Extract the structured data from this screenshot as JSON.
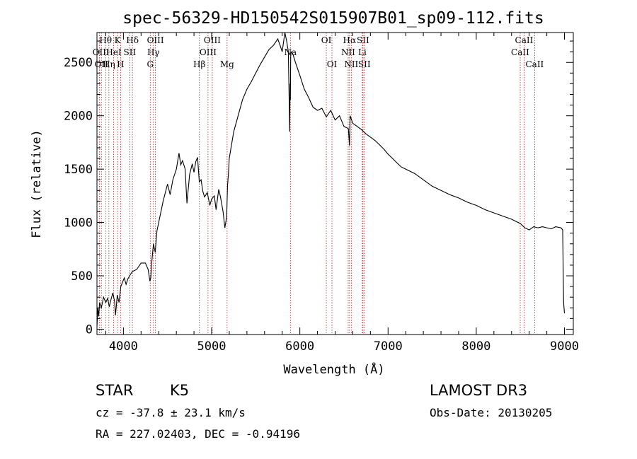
{
  "chart_data": {
    "type": "line",
    "title": "spec-56329-HD150542S015907B01_sp09-112.fits",
    "xlabel": "Wavelength (Å)",
    "ylabel": "Flux (relative)",
    "xlim": [
      3700,
      9100
    ],
    "ylim": [
      -50,
      2780
    ],
    "xticks": [
      4000,
      5000,
      6000,
      7000,
      8000,
      9000
    ],
    "yticks": [
      0,
      500,
      1000,
      1500,
      2000,
      2500
    ],
    "grid": false,
    "series": [
      {
        "x": [
          3700,
          3710,
          3720,
          3730,
          3750,
          3775,
          3800,
          3820,
          3840,
          3860,
          3880,
          3900,
          3910,
          3930,
          3950,
          3970,
          3990,
          4010,
          4030,
          4050,
          4070,
          4100,
          4150,
          4200,
          4250,
          4280,
          4300,
          4310,
          4320,
          4340,
          4360,
          4380,
          4400,
          4450,
          4500,
          4530,
          4560,
          4600,
          4630,
          4650,
          4670,
          4700,
          4720,
          4750,
          4780,
          4800,
          4820,
          4840,
          4860,
          4880,
          4900,
          4920,
          4950,
          4980,
          5000,
          5030,
          5050,
          5080,
          5100,
          5130,
          5150,
          5170,
          5180,
          5190,
          5200,
          5220,
          5250,
          5300,
          5350,
          5400,
          5450,
          5500,
          5550,
          5600,
          5650,
          5700,
          5750,
          5780,
          5800,
          5830,
          5850,
          5870,
          5885,
          5890,
          5893,
          5896,
          5900,
          5920,
          5950,
          6000,
          6050,
          6100,
          6150,
          6200,
          6250,
          6300,
          6350,
          6400,
          6450,
          6500,
          6550,
          6563,
          6570,
          6600,
          6650,
          6700,
          6750,
          6800,
          6850,
          6900,
          6950,
          7000,
          7050,
          7100,
          7150,
          7200,
          7300,
          7400,
          7500,
          7600,
          7700,
          7800,
          7900,
          8000,
          8100,
          8200,
          8300,
          8400,
          8500,
          8550,
          8600,
          8650,
          8700,
          8750,
          8800,
          8850,
          8900,
          8960,
          8980,
          8990,
          9000
        ],
        "y": [
          20,
          200,
          120,
          250,
          200,
          300,
          250,
          290,
          210,
          280,
          340,
          260,
          130,
          320,
          250,
          400,
          440,
          480,
          420,
          470,
          500,
          540,
          560,
          620,
          620,
          560,
          450,
          480,
          620,
          800,
          720,
          920,
          1000,
          1200,
          1360,
          1260,
          1400,
          1500,
          1650,
          1540,
          1580,
          1500,
          1180,
          1450,
          1550,
          1470,
          1570,
          1610,
          1380,
          1400,
          1290,
          1240,
          1280,
          1160,
          1220,
          1250,
          1120,
          1310,
          1240,
          1100,
          950,
          1050,
          1350,
          1450,
          1600,
          1700,
          1850,
          2000,
          2150,
          2250,
          2320,
          2400,
          2480,
          2550,
          2620,
          2660,
          2720,
          2650,
          2600,
          2780,
          2700,
          2600,
          1850,
          2300,
          2150,
          2550,
          2600,
          2580,
          2500,
          2380,
          2250,
          2170,
          2080,
          2050,
          2070,
          1990,
          2050,
          1960,
          2000,
          1900,
          1880,
          1720,
          2000,
          1930,
          1900,
          1870,
          1830,
          1800,
          1770,
          1730,
          1690,
          1640,
          1600,
          1560,
          1520,
          1500,
          1460,
          1400,
          1340,
          1300,
          1260,
          1230,
          1190,
          1160,
          1120,
          1090,
          1060,
          1030,
          990,
          950,
          930,
          960,
          950,
          960,
          950,
          940,
          960,
          950,
          930,
          250,
          150
        ]
      }
    ],
    "line_markers": [
      {
        "wl": 3727,
        "label": "OII",
        "row": 2
      },
      {
        "wl": 3750,
        "label": "OII",
        "row": 3
      },
      {
        "wl": 3798,
        "label": "Hθ",
        "row": 1
      },
      {
        "wl": 3835,
        "label": "Hη",
        "row": 3
      },
      {
        "wl": 3889,
        "label": "HeI",
        "row": 2
      },
      {
        "wl": 3934,
        "label": "K",
        "row": 1
      },
      {
        "wl": 3968,
        "label": "H",
        "row": 3
      },
      {
        "wl": 4072,
        "label": "SII",
        "row": 2
      },
      {
        "wl": 4102,
        "label": "Hδ",
        "row": 1
      },
      {
        "wl": 4304,
        "label": "G",
        "row": 3
      },
      {
        "wl": 4340,
        "label": "Hγ",
        "row": 2
      },
      {
        "wl": 4363,
        "label": "OIII",
        "row": 1
      },
      {
        "wl": 4861,
        "label": "Hβ",
        "row": 3
      },
      {
        "wl": 4959,
        "label": "OIII",
        "row": 2
      },
      {
        "wl": 5007,
        "label": "OIII",
        "row": 1
      },
      {
        "wl": 5175,
        "label": "Mg",
        "row": 3
      },
      {
        "wl": 5893,
        "label": "Na",
        "row": 2
      },
      {
        "wl": 6300,
        "label": "OI",
        "row": 1
      },
      {
        "wl": 6364,
        "label": "OI",
        "row": 3
      },
      {
        "wl": 6548,
        "label": "NII",
        "row": 2
      },
      {
        "wl": 6563,
        "label": "Hα",
        "row": 1
      },
      {
        "wl": 6583,
        "label": "NII",
        "row": 3
      },
      {
        "wl": 6708,
        "label": "Li",
        "row": 2
      },
      {
        "wl": 6716,
        "label": "SII",
        "row": 1
      },
      {
        "wl": 6731,
        "label": "SII",
        "row": 3
      },
      {
        "wl": 8498,
        "label": "CaII",
        "row": 2
      },
      {
        "wl": 8542,
        "label": "CaII",
        "row": 1
      },
      {
        "wl": 8662,
        "label": "CaII",
        "row": 3
      }
    ]
  },
  "info": {
    "class": "STAR",
    "subclass": "K5",
    "survey": "LAMOST DR3",
    "cz": "cz = -37.8 ± 23.1 km/s",
    "obs_date": "Obs-Date: 20130205",
    "coords": "RA = 227.02403, DEC =  -0.94196"
  }
}
